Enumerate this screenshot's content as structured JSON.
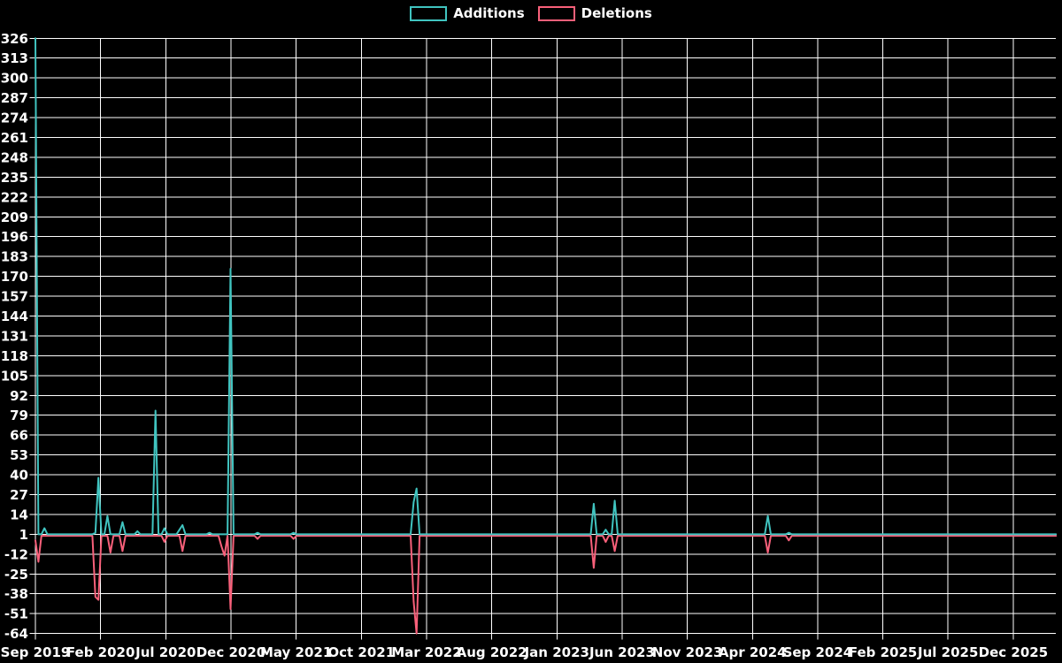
{
  "chart_data": {
    "type": "line",
    "title": "",
    "background_color": "#000000",
    "grid_color": "#ffffff",
    "text_color": "#ffffff",
    "grid": true,
    "legend_position": "top-center",
    "points_frequency": "weekly",
    "weeks_total": 341,
    "legend": [
      {
        "label": "Additions",
        "color": "#40c4c0"
      },
      {
        "label": "Deletions",
        "color": "#f8607a"
      }
    ],
    "y_axis": {
      "min": -64,
      "max": 326,
      "tick_step": 13,
      "tick_labels": [
        326,
        313,
        300,
        287,
        274,
        261,
        248,
        235,
        222,
        209,
        196,
        183,
        170,
        157,
        144,
        131,
        118,
        105,
        92,
        79,
        66,
        53,
        40,
        27,
        14,
        1,
        -12,
        -25,
        -38,
        -51,
        -64
      ]
    },
    "x_axis": {
      "tick_interval_months": 5,
      "tick_labels": [
        "Sep 2019",
        "Feb 2020",
        "Jul 2020",
        "Dec 2020",
        "May 2021",
        "Oct 2021",
        "Mar 2022",
        "Aug 2022",
        "Jan 2023",
        "Jun 2023",
        "Nov 2023",
        "Apr 2024",
        "Sep 2024",
        "Feb 2025",
        "Jul 2025",
        "Dec 2025"
      ]
    },
    "series": [
      {
        "name": "Additions",
        "color": "#40c4c0",
        "baseline": 1,
        "spikes": [
          [
            0,
            326
          ],
          [
            3,
            5
          ],
          [
            20,
            2
          ],
          [
            21,
            38
          ],
          [
            24,
            13
          ],
          [
            29,
            9
          ],
          [
            34,
            3
          ],
          [
            40,
            82
          ],
          [
            43,
            5
          ],
          [
            48,
            4
          ],
          [
            49,
            7
          ],
          [
            58,
            2
          ],
          [
            65,
            175
          ],
          [
            74,
            2
          ],
          [
            86,
            2
          ],
          [
            126,
            22
          ],
          [
            127,
            31
          ],
          [
            186,
            21
          ],
          [
            190,
            4
          ],
          [
            193,
            23
          ],
          [
            244,
            13
          ],
          [
            251,
            2
          ]
        ]
      },
      {
        "name": "Deletions",
        "color": "#f8607a",
        "baseline": 0,
        "spikes": [
          [
            0,
            -3
          ],
          [
            1,
            -17
          ],
          [
            20,
            -40
          ],
          [
            21,
            -42
          ],
          [
            25,
            -11
          ],
          [
            29,
            -10
          ],
          [
            43,
            -4
          ],
          [
            49,
            -10
          ],
          [
            62,
            -7
          ],
          [
            63,
            -13
          ],
          [
            65,
            -48
          ],
          [
            74,
            -2
          ],
          [
            86,
            -2
          ],
          [
            126,
            -43
          ],
          [
            127,
            -64
          ],
          [
            186,
            -21
          ],
          [
            190,
            -4
          ],
          [
            193,
            -10
          ],
          [
            244,
            -11
          ],
          [
            251,
            -3
          ]
        ]
      }
    ]
  }
}
